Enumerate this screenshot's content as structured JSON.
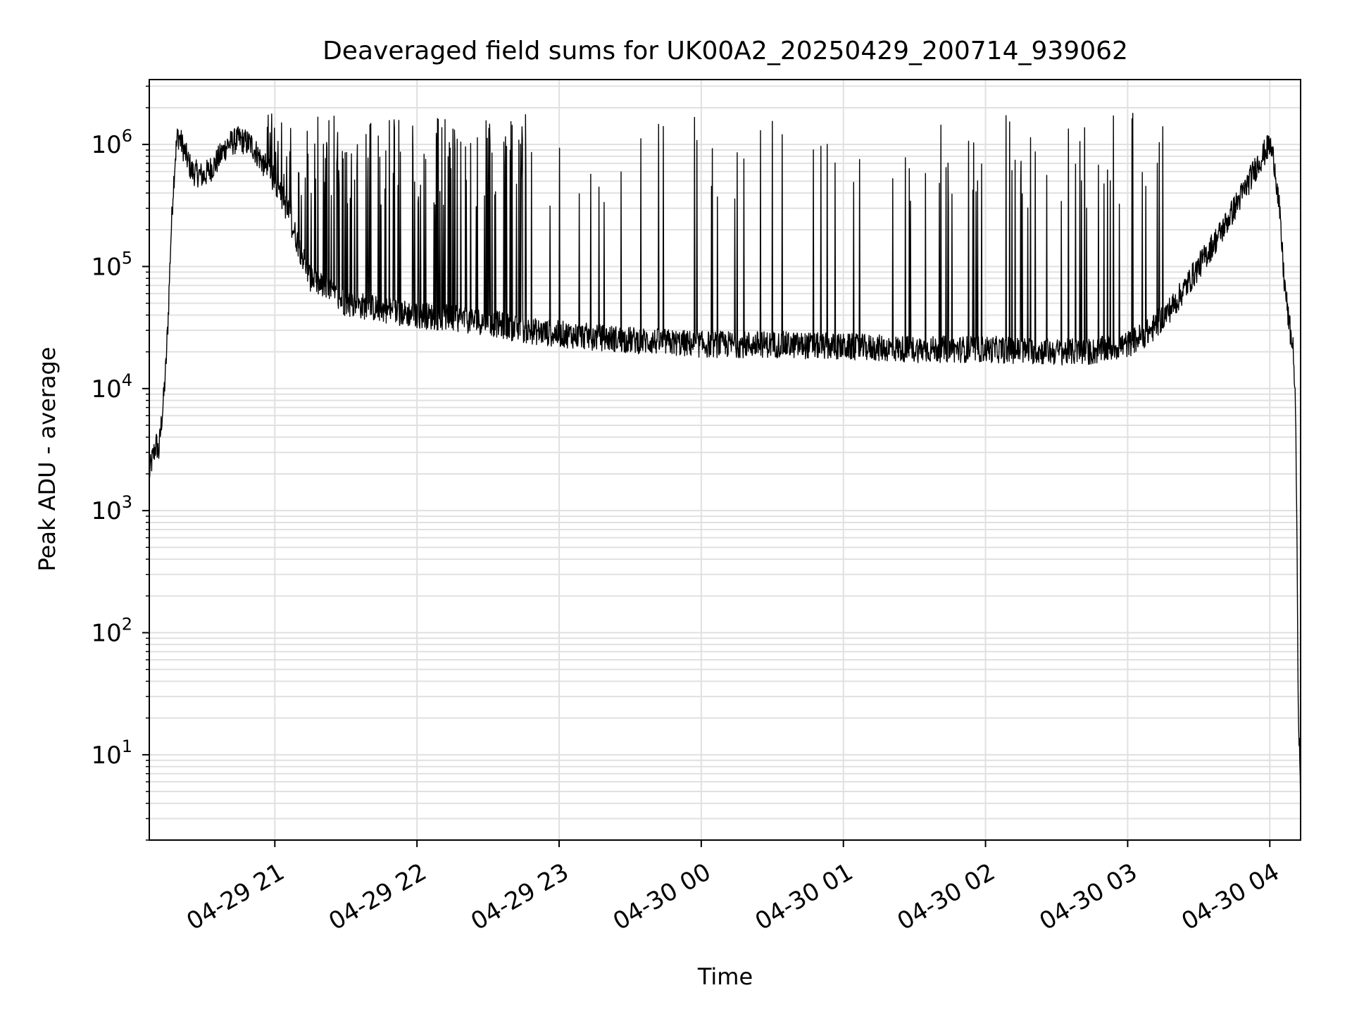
{
  "chart_data": {
    "type": "line",
    "title": "Deaveraged field sums for UK00A2_20250429_200714_939062",
    "xlabel": "Time",
    "ylabel": "Peak ADU - average",
    "yscale": "log",
    "ylim": [
      2,
      3400000
    ],
    "xlim": [
      "2025-04-29 20:07",
      "2025-04-30 04:13"
    ],
    "grid": true,
    "line_color": "#000000",
    "grid_color": "#e0e0e0",
    "x_ticks": [
      {
        "label": "04-29 21",
        "t": "2025-04-29 21:00"
      },
      {
        "label": "04-29 22",
        "t": "2025-04-29 22:00"
      },
      {
        "label": "04-29 23",
        "t": "2025-04-29 23:00"
      },
      {
        "label": "04-30 00",
        "t": "2025-04-30 00:00"
      },
      {
        "label": "04-30 01",
        "t": "2025-04-30 01:00"
      },
      {
        "label": "04-30 02",
        "t": "2025-04-30 02:00"
      },
      {
        "label": "04-30 03",
        "t": "2025-04-30 03:00"
      },
      {
        "label": "04-30 04",
        "t": "2025-04-30 04:00"
      }
    ],
    "y_ticks": [
      {
        "value": 10,
        "base": "10",
        "exp": "1"
      },
      {
        "value": 100,
        "base": "10",
        "exp": "2"
      },
      {
        "value": 1000,
        "base": "10",
        "exp": "3"
      },
      {
        "value": 10000,
        "base": "10",
        "exp": "4"
      },
      {
        "value": 100000,
        "base": "10",
        "exp": "5"
      },
      {
        "value": 1000000,
        "base": "10",
        "exp": "6"
      }
    ],
    "series": [
      {
        "baseline": {
          "t": [
            "2025-04-29 20:07",
            "2025-04-29 20:08",
            "2025-04-29 20:09",
            "2025-04-29 20:10",
            "2025-04-29 20:11",
            "2025-04-29 20:12",
            "2025-04-29 20:13",
            "2025-04-29 20:14",
            "2025-04-29 20:15",
            "2025-04-29 20:16",
            "2025-04-29 20:17",
            "2025-04-29 20:18",
            "2025-04-29 20:19",
            "2025-04-29 20:20",
            "2025-04-29 20:25",
            "2025-04-29 20:30",
            "2025-04-29 20:35",
            "2025-04-29 20:40",
            "2025-04-29 20:45",
            "2025-04-29 20:50",
            "2025-04-29 21:00",
            "2025-04-29 21:05",
            "2025-04-29 21:10",
            "2025-04-29 21:15",
            "2025-04-29 21:30",
            "2025-04-29 22:00",
            "2025-04-29 22:30",
            "2025-04-29 22:45",
            "2025-04-29 23:00",
            "2025-04-29 23:30",
            "2025-04-30 00:00",
            "2025-04-30 00:30",
            "2025-04-30 01:00",
            "2025-04-30 01:30",
            "2025-04-30 02:00",
            "2025-04-30 02:30",
            "2025-04-30 02:45",
            "2025-04-30 03:00",
            "2025-04-30 03:10",
            "2025-04-30 03:20",
            "2025-04-30 03:30",
            "2025-04-30 03:40",
            "2025-04-30 03:45",
            "2025-04-30 03:50",
            "2025-04-30 03:55",
            "2025-04-30 04:00",
            "2025-04-30 04:02",
            "2025-04-30 04:04",
            "2025-04-30 04:06",
            "2025-04-30 04:08",
            "2025-04-30 04:10",
            "2025-04-30 04:11",
            "2025-04-30 04:12",
            "2025-04-30 04:13"
          ],
          "y": [
            2000,
            2500,
            3000,
            3500,
            3000,
            5000,
            8000,
            15000,
            40000,
            150000,
            400000,
            800000,
            1200000,
            1100000,
            600000,
            550000,
            700000,
            1000000,
            1100000,
            1000000,
            500000,
            300000,
            150000,
            80000,
            50000,
            40000,
            35000,
            30000,
            28000,
            25000,
            23000,
            23000,
            22000,
            21000,
            21000,
            20000,
            20000,
            23000,
            30000,
            50000,
            100000,
            200000,
            300000,
            450000,
            700000,
            1000000,
            700000,
            300000,
            80000,
            35000,
            20000,
            5000,
            30,
            4
          ]
        },
        "spike_rate_per_min": [
          {
            "from": "2025-04-29 20:55",
            "to": "2025-04-29 22:45",
            "rate": 1.0
          },
          {
            "from": "2025-04-29 22:45",
            "to": "2025-04-30 03:15",
            "rate": 0.3
          }
        ],
        "spike_peak_range": [
          300000,
          1800000
        ]
      }
    ]
  }
}
